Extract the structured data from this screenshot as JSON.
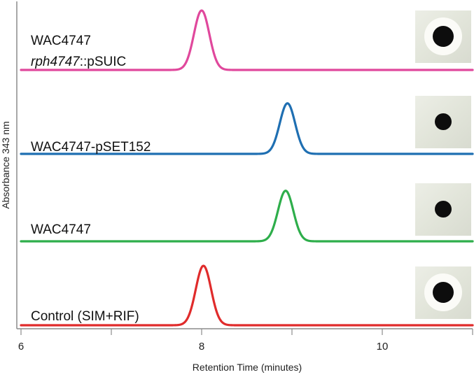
{
  "chart_data": {
    "type": "line",
    "xlabel": "Retention Time  (minutes)",
    "ylabel": "Absorbance 343 nm",
    "xlim": [
      6,
      11
    ],
    "x_ticks": [
      6,
      7,
      8,
      9,
      10,
      11
    ],
    "x_tick_labels": [
      "6",
      "8",
      "10"
    ],
    "grid": false,
    "legend": "none",
    "series": [
      {
        "label_line1": "WAC4747",
        "label_line2_italic": "rph4747",
        "label_line2_rest": "::pSUIC",
        "color": "#e0489c",
        "peak_time": 8.0,
        "peak_height": 1.0,
        "halo": "large clear zone"
      },
      {
        "label_line1": "WAC4747-pSET152",
        "color": "#1f6fb2",
        "peak_time": 8.95,
        "peak_height": 0.85,
        "halo": "none"
      },
      {
        "label_line1": "WAC4747",
        "color": "#2eae4b",
        "peak_time": 8.93,
        "peak_height": 0.85,
        "halo": "none"
      },
      {
        "label_line1": "Control (SIM+RIF)",
        "color": "#e02b2b",
        "peak_time": 8.02,
        "peak_height": 1.0,
        "halo": "large clear zone"
      }
    ]
  }
}
